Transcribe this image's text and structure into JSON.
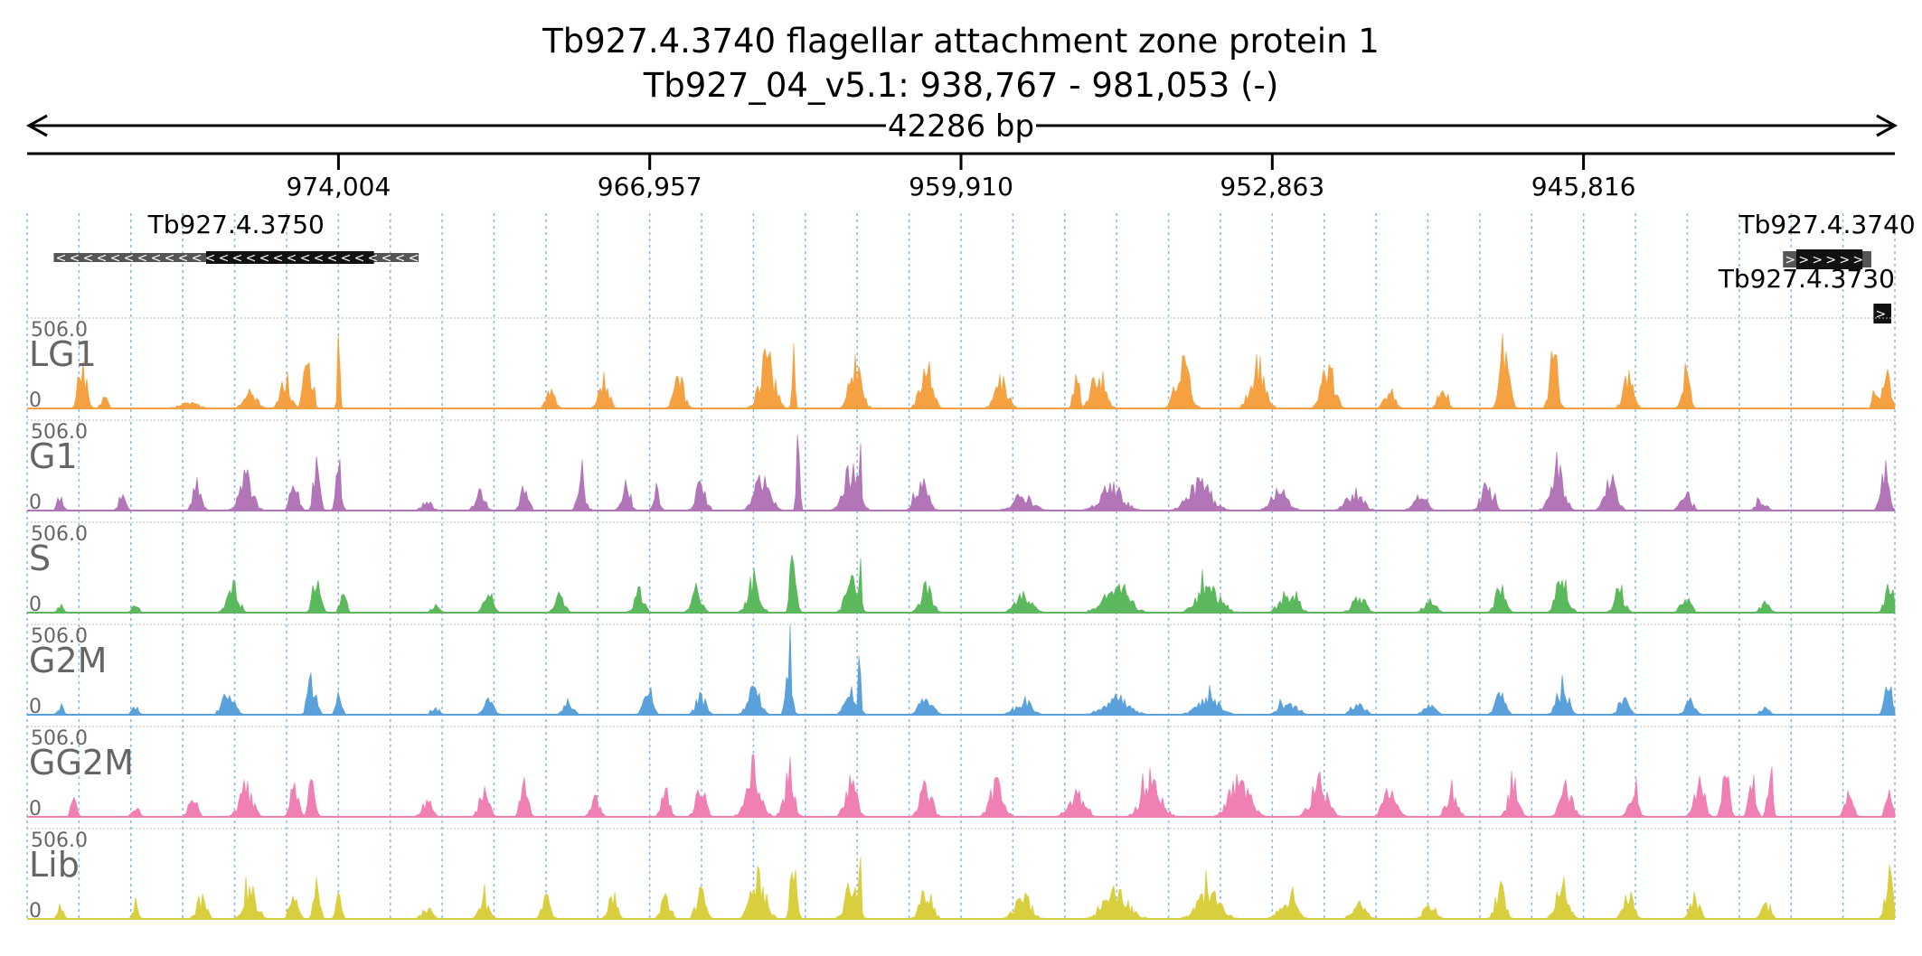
{
  "title": {
    "line1": "Tb927.4.3740  flagellar attachment zone protein 1",
    "line2": "Tb927_04_v5.1: 938,767 - 981,053 (-)",
    "span_label": "42286 bp"
  },
  "colors": {
    "text": "#000000",
    "track_label": "#666666",
    "grid": "#87b8e6",
    "gene_body": "#111111",
    "gene_utr": "#555555"
  },
  "chart_data": {
    "type": "area",
    "chromosome": "Tb927_04_v5.1",
    "x_range": [
      981053,
      938767
    ],
    "x_reversed": true,
    "x_ticks": [
      {
        "value": 974004,
        "label": "974,004"
      },
      {
        "value": 966957,
        "label": "966,957"
      },
      {
        "value": 959910,
        "label": "959,910"
      },
      {
        "value": 952863,
        "label": "952,863"
      },
      {
        "value": 945816,
        "label": "945,816"
      }
    ],
    "grid_lines": true,
    "genes": [
      {
        "id": "Tb927.4.3750",
        "strand": "-",
        "utr": [
          980450,
          972190
        ],
        "cds": [
          977000,
          973200
        ]
      },
      {
        "id": "Tb927.4.3740",
        "strand": "+",
        "utr": [
          941300,
          939300
        ],
        "cds": [
          941000,
          939500
        ]
      },
      {
        "id": "Tb927.4.3730",
        "strand": "+",
        "utr": [
          939250,
          938850
        ],
        "cds": [
          939250,
          938850
        ]
      }
    ],
    "y_range": [
      0,
      506.0
    ],
    "y_max_label": "506.0",
    "y_min_label": "0",
    "tracks": [
      {
        "name": "LG1",
        "color": "#f5a142",
        "peaks": [
          [
            979800,
            330,
            120
          ],
          [
            979300,
            80,
            100
          ],
          [
            977400,
            40,
            300
          ],
          [
            976000,
            120,
            200
          ],
          [
            975200,
            230,
            150
          ],
          [
            974700,
            450,
            120
          ],
          [
            974000,
            470,
            40
          ],
          [
            974600,
            290,
            60
          ],
          [
            969200,
            170,
            120
          ],
          [
            968000,
            260,
            150
          ],
          [
            966300,
            250,
            150
          ],
          [
            964300,
            380,
            220
          ],
          [
            963700,
            500,
            40
          ],
          [
            962200,
            506,
            40
          ],
          [
            962300,
            340,
            180
          ],
          [
            960700,
            330,
            180
          ],
          [
            959000,
            200,
            200
          ],
          [
            957300,
            330,
            80
          ],
          [
            956800,
            280,
            200
          ],
          [
            954900,
            380,
            200
          ],
          [
            953200,
            330,
            220
          ],
          [
            951600,
            300,
            200
          ],
          [
            950200,
            160,
            150
          ],
          [
            949000,
            200,
            130
          ],
          [
            947600,
            490,
            130
          ],
          [
            946500,
            460,
            120
          ],
          [
            944800,
            240,
            150
          ],
          [
            943500,
            270,
            120
          ],
          [
            938950,
            320,
            130
          ],
          [
            939200,
            180,
            80
          ]
        ]
      },
      {
        "name": "G1",
        "color": "#b175b8",
        "peaks": [
          [
            980300,
            110,
            90
          ],
          [
            978900,
            120,
            100
          ],
          [
            977200,
            200,
            130
          ],
          [
            976100,
            260,
            200
          ],
          [
            975000,
            230,
            120
          ],
          [
            974500,
            420,
            90
          ],
          [
            974000,
            340,
            80
          ],
          [
            972000,
            70,
            150
          ],
          [
            970800,
            140,
            150
          ],
          [
            969800,
            170,
            120
          ],
          [
            968500,
            190,
            120
          ],
          [
            967500,
            210,
            130
          ],
          [
            966800,
            170,
            100
          ],
          [
            965800,
            210,
            150
          ],
          [
            964400,
            290,
            230
          ],
          [
            963600,
            480,
            50
          ],
          [
            962200,
            500,
            40
          ],
          [
            962400,
            330,
            220
          ],
          [
            960800,
            230,
            180
          ],
          [
            958500,
            110,
            300
          ],
          [
            956500,
            170,
            350
          ],
          [
            954500,
            210,
            350
          ],
          [
            952700,
            160,
            250
          ],
          [
            951000,
            140,
            250
          ],
          [
            949500,
            100,
            200
          ],
          [
            948000,
            190,
            180
          ],
          [
            946400,
            340,
            200
          ],
          [
            945200,
            230,
            180
          ],
          [
            943500,
            160,
            150
          ],
          [
            941800,
            90,
            150
          ],
          [
            939000,
            330,
            120
          ]
        ]
      },
      {
        "name": "S",
        "color": "#5cb85c",
        "peaks": [
          [
            980300,
            60,
            90
          ],
          [
            978600,
            70,
            100
          ],
          [
            976400,
            200,
            180
          ],
          [
            974500,
            320,
            120
          ],
          [
            973900,
            250,
            80
          ],
          [
            971800,
            60,
            120
          ],
          [
            970600,
            140,
            150
          ],
          [
            969000,
            120,
            150
          ],
          [
            967200,
            150,
            150
          ],
          [
            965900,
            180,
            150
          ],
          [
            964600,
            250,
            180
          ],
          [
            963700,
            430,
            90
          ],
          [
            962200,
            506,
            40
          ],
          [
            962400,
            220,
            180
          ],
          [
            960700,
            180,
            180
          ],
          [
            958500,
            130,
            250
          ],
          [
            956400,
            210,
            380
          ],
          [
            954300,
            200,
            350
          ],
          [
            952500,
            150,
            250
          ],
          [
            950900,
            120,
            200
          ],
          [
            949300,
            90,
            180
          ],
          [
            947700,
            180,
            150
          ],
          [
            946300,
            260,
            180
          ],
          [
            945000,
            180,
            150
          ],
          [
            943500,
            120,
            150
          ],
          [
            941700,
            70,
            150
          ],
          [
            938900,
            270,
            120
          ]
        ]
      },
      {
        "name": "G2M",
        "color": "#5aa1dc",
        "peaks": [
          [
            980300,
            70,
            90
          ],
          [
            978600,
            60,
            100
          ],
          [
            976500,
            180,
            180
          ],
          [
            974600,
            280,
            120
          ],
          [
            974000,
            200,
            80
          ],
          [
            971800,
            50,
            120
          ],
          [
            970600,
            100,
            150
          ],
          [
            968800,
            100,
            150
          ],
          [
            967000,
            130,
            150
          ],
          [
            965800,
            150,
            150
          ],
          [
            964600,
            240,
            180
          ],
          [
            963800,
            440,
            90
          ],
          [
            962200,
            500,
            40
          ],
          [
            962400,
            200,
            180
          ],
          [
            960700,
            160,
            180
          ],
          [
            958500,
            110,
            250
          ],
          [
            956400,
            140,
            380
          ],
          [
            954300,
            120,
            350
          ],
          [
            952500,
            100,
            250
          ],
          [
            950900,
            90,
            200
          ],
          [
            949300,
            70,
            180
          ],
          [
            947700,
            140,
            150
          ],
          [
            946300,
            200,
            180
          ],
          [
            944900,
            140,
            150
          ],
          [
            943400,
            100,
            150
          ],
          [
            941700,
            50,
            150
          ],
          [
            938900,
            230,
            120
          ]
        ]
      },
      {
        "name": "GG2M",
        "color": "#f07fb3",
        "peaks": [
          [
            980000,
            120,
            90
          ],
          [
            978600,
            100,
            100
          ],
          [
            977300,
            150,
            130
          ],
          [
            976100,
            230,
            200
          ],
          [
            975000,
            240,
            120
          ],
          [
            974600,
            360,
            90
          ],
          [
            972000,
            120,
            150
          ],
          [
            970700,
            200,
            150
          ],
          [
            969800,
            270,
            110
          ],
          [
            968200,
            180,
            130
          ],
          [
            966600,
            200,
            130
          ],
          [
            965800,
            210,
            150
          ],
          [
            964600,
            360,
            220
          ],
          [
            963800,
            300,
            150
          ],
          [
            962400,
            270,
            180
          ],
          [
            960700,
            240,
            180
          ],
          [
            959100,
            260,
            200
          ],
          [
            957300,
            160,
            250
          ],
          [
            955600,
            240,
            300
          ],
          [
            953600,
            300,
            300
          ],
          [
            951800,
            270,
            250
          ],
          [
            950200,
            200,
            200
          ],
          [
            948800,
            160,
            180
          ],
          [
            947400,
            300,
            150
          ],
          [
            946200,
            240,
            180
          ],
          [
            944700,
            190,
            150
          ],
          [
            943200,
            300,
            150
          ],
          [
            942600,
            410,
            100
          ],
          [
            942000,
            380,
            100
          ],
          [
            941600,
            280,
            80
          ],
          [
            939800,
            200,
            120
          ],
          [
            938900,
            200,
            100
          ]
        ]
      },
      {
        "name": "Lib",
        "color": "#d9cf3e",
        "peaks": [
          [
            980300,
            90,
            90
          ],
          [
            978600,
            80,
            100
          ],
          [
            977100,
            160,
            150
          ],
          [
            976000,
            210,
            200
          ],
          [
            975000,
            200,
            120
          ],
          [
            974500,
            290,
            90
          ],
          [
            974000,
            220,
            80
          ],
          [
            972000,
            80,
            150
          ],
          [
            970700,
            130,
            150
          ],
          [
            969300,
            160,
            130
          ],
          [
            967800,
            190,
            130
          ],
          [
            966600,
            170,
            130
          ],
          [
            965800,
            200,
            150
          ],
          [
            964500,
            320,
            220
          ],
          [
            963700,
            420,
            90
          ],
          [
            962200,
            500,
            40
          ],
          [
            962400,
            250,
            180
          ],
          [
            960700,
            230,
            180
          ],
          [
            958500,
            160,
            250
          ],
          [
            956400,
            200,
            380
          ],
          [
            954300,
            190,
            350
          ],
          [
            952500,
            160,
            250
          ],
          [
            950900,
            140,
            200
          ],
          [
            949300,
            110,
            180
          ],
          [
            947700,
            220,
            150
          ],
          [
            946300,
            260,
            180
          ],
          [
            944800,
            200,
            150
          ],
          [
            943300,
            160,
            150
          ],
          [
            941700,
            110,
            150
          ],
          [
            938900,
            320,
            120
          ]
        ]
      }
    ]
  }
}
